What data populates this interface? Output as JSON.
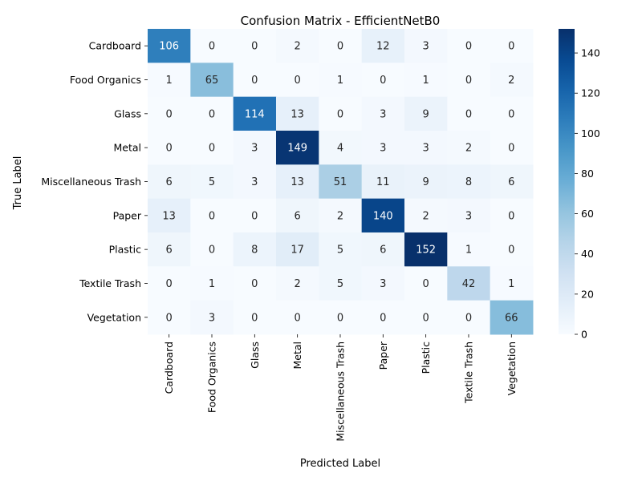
{
  "chart_data": {
    "type": "heatmap",
    "title": "Confusion Matrix - EfficientNetB0",
    "xlabel": "Predicted Label",
    "ylabel": "True Label",
    "x_categories": [
      "Cardboard",
      "Food Organics",
      "Glass",
      "Metal",
      "Miscellaneous Trash",
      "Paper",
      "Plastic",
      "Textile Trash",
      "Vegetation"
    ],
    "y_categories": [
      "Cardboard",
      "Food Organics",
      "Glass",
      "Metal",
      "Miscellaneous Trash",
      "Paper",
      "Plastic",
      "Textile Trash",
      "Vegetation"
    ],
    "values": [
      [
        106,
        0,
        0,
        2,
        0,
        12,
        3,
        0,
        0
      ],
      [
        1,
        65,
        0,
        0,
        1,
        0,
        1,
        0,
        2
      ],
      [
        0,
        0,
        114,
        13,
        0,
        3,
        9,
        0,
        0
      ],
      [
        0,
        0,
        3,
        149,
        4,
        3,
        3,
        2,
        0
      ],
      [
        6,
        5,
        3,
        13,
        51,
        11,
        9,
        8,
        6
      ],
      [
        13,
        0,
        0,
        6,
        2,
        140,
        2,
        3,
        0
      ],
      [
        6,
        0,
        8,
        17,
        5,
        6,
        152,
        1,
        0
      ],
      [
        0,
        1,
        0,
        2,
        5,
        3,
        0,
        42,
        1
      ],
      [
        0,
        3,
        0,
        0,
        0,
        0,
        0,
        0,
        66
      ]
    ],
    "colormap": "Blues",
    "vmin": 0,
    "vmax": 152,
    "colorbar_ticks": [
      0,
      20,
      40,
      60,
      80,
      100,
      120,
      140
    ]
  }
}
